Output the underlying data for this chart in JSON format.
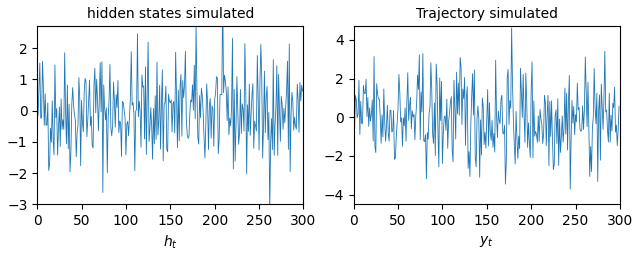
{
  "title_left": "hidden states simulated",
  "title_right": "Trajectory simulated",
  "xlabel_left": "$h_t$",
  "xlabel_right": "$y_t$",
  "n_steps": 300,
  "seed": 42,
  "line_color": "#1f77b4",
  "linewidth": 0.6,
  "figsize": [
    6.4,
    2.58
  ],
  "dpi": 100,
  "ylim_left": [
    -3.0,
    2.7
  ],
  "ylim_right": [
    -4.5,
    4.7
  ],
  "xlim": [
    0,
    300
  ],
  "title_fontsize": 10,
  "label_fontsize": 10
}
